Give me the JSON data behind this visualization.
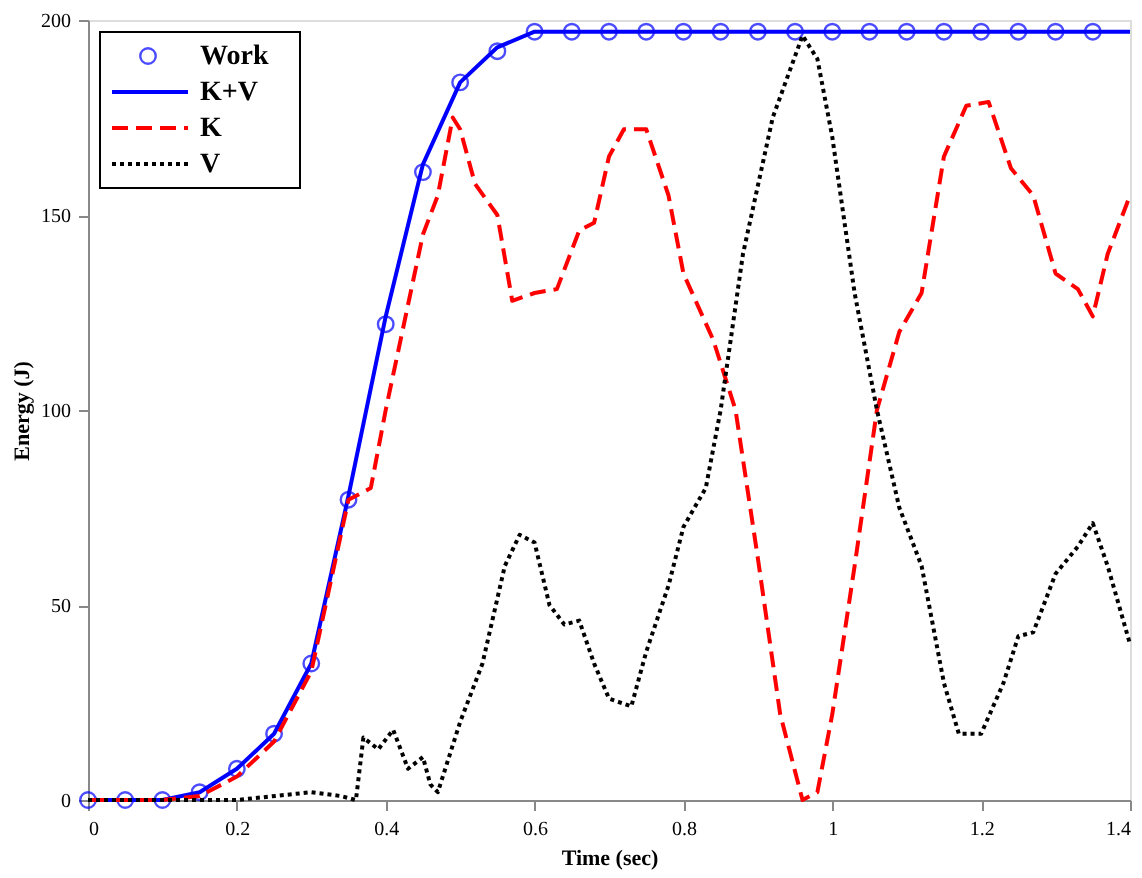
{
  "chart_data": {
    "type": "line",
    "xlabel": "Time (sec)",
    "ylabel": "Energy (J)",
    "xlim": [
      0,
      1.4
    ],
    "ylim": [
      0,
      200
    ],
    "xticks": [
      0,
      0.2,
      0.4,
      0.6,
      0.8,
      1,
      1.2,
      1.4
    ],
    "yticks": [
      0,
      50,
      100,
      150,
      200
    ],
    "grid": false,
    "legend": "top left",
    "series": [
      {
        "name": "Work",
        "type": "scatter",
        "marker": "circle",
        "color": "#0000ff",
        "x": [
          0,
          0.05,
          0.1,
          0.15,
          0.2,
          0.25,
          0.3,
          0.35,
          0.4,
          0.45,
          0.5,
          0.55,
          0.6,
          0.65,
          0.7,
          0.75,
          0.8,
          0.85,
          0.9,
          0.95,
          1,
          1.05,
          1.1,
          1.15,
          1.2,
          1.25,
          1.3,
          1.35
        ],
        "values": [
          0,
          0,
          0,
          2,
          8,
          17,
          35,
          77,
          122,
          161,
          184,
          192,
          197,
          197,
          197,
          197,
          197,
          197,
          197,
          197,
          197,
          197,
          197,
          197,
          197,
          197,
          197,
          197
        ]
      },
      {
        "name": "K+V",
        "line_style": "solid",
        "color": "#0000ff",
        "x": [
          0,
          0.1,
          0.15,
          0.2,
          0.25,
          0.3,
          0.35,
          0.4,
          0.45,
          0.5,
          0.55,
          0.6,
          0.8,
          1,
          1.2,
          1.4
        ],
        "values": [
          0,
          0,
          2,
          8,
          17,
          35,
          78,
          124,
          163,
          184,
          193,
          197,
          197,
          197,
          197,
          197
        ]
      },
      {
        "name": "K",
        "line_style": "dashed",
        "color": "#ff0000",
        "x": [
          0,
          0.1,
          0.15,
          0.2,
          0.25,
          0.3,
          0.35,
          0.38,
          0.4,
          0.42,
          0.45,
          0.47,
          0.49,
          0.5,
          0.52,
          0.55,
          0.57,
          0.6,
          0.63,
          0.66,
          0.68,
          0.7,
          0.72,
          0.75,
          0.78,
          0.8,
          0.84,
          0.87,
          0.9,
          0.93,
          0.96,
          0.98,
          1,
          1.03,
          1.06,
          1.09,
          1.12,
          1.15,
          1.18,
          1.21,
          1.24,
          1.27,
          1.3,
          1.33,
          1.35,
          1.37,
          1.4
        ],
        "values": [
          0,
          0,
          1,
          6,
          15,
          33,
          77,
          80,
          100,
          118,
          145,
          155,
          175,
          172,
          158,
          150,
          128,
          130,
          131,
          146,
          148,
          165,
          172,
          172,
          155,
          135,
          118,
          100,
          62,
          22,
          0,
          2,
          22,
          60,
          100,
          120,
          130,
          165,
          178,
          179,
          162,
          155,
          135,
          131,
          124,
          140,
          155
        ]
      },
      {
        "name": "V",
        "line_style": "dotted",
        "color": "#000000",
        "x": [
          0,
          0.2,
          0.3,
          0.34,
          0.36,
          0.37,
          0.39,
          0.41,
          0.43,
          0.45,
          0.46,
          0.47,
          0.5,
          0.53,
          0.56,
          0.58,
          0.6,
          0.62,
          0.64,
          0.66,
          0.68,
          0.7,
          0.73,
          0.75,
          0.78,
          0.8,
          0.83,
          0.85,
          0.88,
          0.92,
          0.96,
          0.98,
          1,
          1.03,
          1.06,
          1.09,
          1.12,
          1.15,
          1.17,
          1.2,
          1.23,
          1.25,
          1.27,
          1.3,
          1.33,
          1.35,
          1.37,
          1.4
        ],
        "values": [
          0,
          0,
          2,
          1,
          0,
          16,
          13,
          18,
          8,
          11,
          4,
          2,
          20,
          35,
          60,
          68,
          66,
          50,
          45,
          46,
          35,
          26,
          24,
          38,
          55,
          70,
          80,
          100,
          140,
          175,
          196,
          190,
          170,
          130,
          100,
          75,
          60,
          30,
          17,
          17,
          30,
          42,
          43,
          58,
          65,
          71,
          60,
          40
        ]
      }
    ]
  }
}
